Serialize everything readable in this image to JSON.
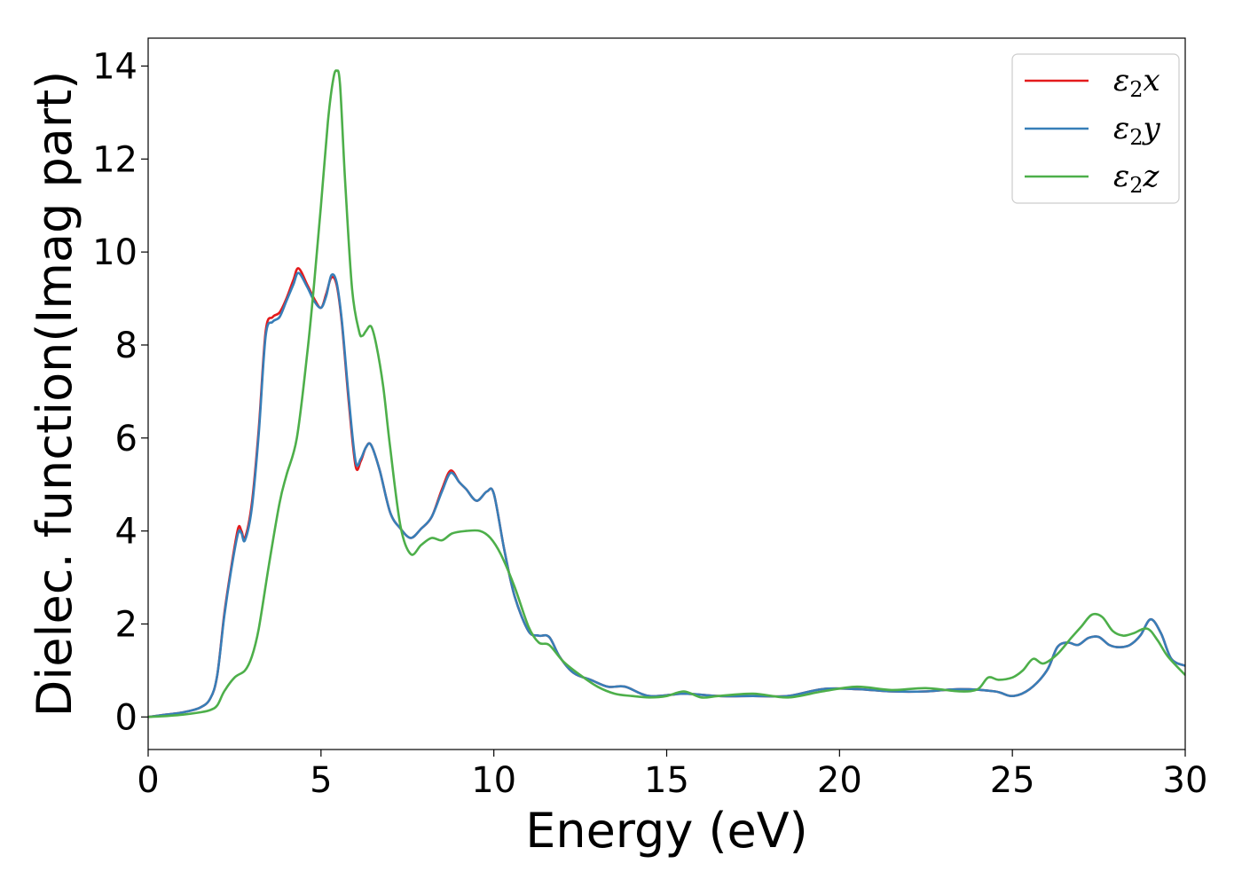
{
  "chart_data": {
    "type": "line",
    "title": "",
    "xlabel": "Energy (eV)",
    "ylabel": "Dielec. function(Imag part)",
    "xlim": [
      0,
      30
    ],
    "ylim": [
      -0.7,
      14.6
    ],
    "xticks": [
      0,
      5,
      10,
      15,
      20,
      25,
      30
    ],
    "yticks": [
      0,
      2,
      4,
      6,
      8,
      10,
      12,
      14
    ],
    "grid": false,
    "legend_position": "top-right",
    "series": [
      {
        "name": "ε2x",
        "legend_base": "ε",
        "legend_sub": "2",
        "legend_var": "x",
        "color": "#e41a1c",
        "x": [
          0,
          0.5,
          1.0,
          1.5,
          1.8,
          2.0,
          2.2,
          2.4,
          2.6,
          2.7,
          2.8,
          3.0,
          3.2,
          3.4,
          3.6,
          3.8,
          4.0,
          4.2,
          4.35,
          4.6,
          4.8,
          5.0,
          5.15,
          5.3,
          5.45,
          5.6,
          5.8,
          6.0,
          6.15,
          6.3,
          6.45,
          6.7,
          7.0,
          7.3,
          7.6,
          7.9,
          8.2,
          8.5,
          8.75,
          9.0,
          9.2,
          9.5,
          9.8,
          10.0,
          10.3,
          10.6,
          11.0,
          11.3,
          11.6,
          11.9,
          12.3,
          12.8,
          13.3,
          13.8,
          14.5,
          15.5,
          16.5,
          17.5,
          18.5,
          19.5,
          20.5,
          21.5,
          22.5,
          23.5,
          24.5,
          25.0,
          25.5,
          26.0,
          26.3,
          26.6,
          26.9,
          27.2,
          27.5,
          27.8,
          28.1,
          28.4,
          28.7,
          29.0,
          29.3,
          29.6,
          30.0
        ],
        "y": [
          0,
          0.05,
          0.1,
          0.2,
          0.4,
          0.9,
          2.2,
          3.2,
          4.05,
          4.0,
          3.85,
          4.6,
          6.2,
          8.3,
          8.6,
          8.7,
          9.0,
          9.4,
          9.65,
          9.3,
          9.0,
          8.8,
          9.1,
          9.45,
          9.3,
          8.5,
          6.8,
          5.4,
          5.5,
          5.8,
          5.85,
          5.3,
          4.4,
          4.05,
          3.85,
          4.05,
          4.3,
          4.9,
          5.3,
          5.05,
          4.9,
          4.65,
          4.85,
          4.8,
          3.6,
          2.6,
          1.85,
          1.75,
          1.72,
          1.3,
          0.95,
          0.8,
          0.65,
          0.65,
          0.45,
          0.5,
          0.45,
          0.45,
          0.45,
          0.6,
          0.6,
          0.55,
          0.55,
          0.6,
          0.55,
          0.45,
          0.6,
          1.0,
          1.5,
          1.6,
          1.55,
          1.7,
          1.72,
          1.55,
          1.5,
          1.55,
          1.75,
          2.1,
          1.8,
          1.25,
          1.1
        ]
      },
      {
        "name": "ε2y",
        "legend_base": "ε",
        "legend_sub": "2",
        "legend_var": "y",
        "color": "#377eb8",
        "x": [
          0,
          0.5,
          1.0,
          1.5,
          1.8,
          2.0,
          2.2,
          2.4,
          2.6,
          2.7,
          2.8,
          3.0,
          3.2,
          3.4,
          3.6,
          3.8,
          4.0,
          4.2,
          4.35,
          4.6,
          4.8,
          5.0,
          5.15,
          5.3,
          5.45,
          5.6,
          5.8,
          6.0,
          6.15,
          6.3,
          6.45,
          6.7,
          7.0,
          7.3,
          7.6,
          7.9,
          8.2,
          8.5,
          8.75,
          9.0,
          9.2,
          9.5,
          9.8,
          10.0,
          10.3,
          10.6,
          11.0,
          11.3,
          11.6,
          11.9,
          12.3,
          12.8,
          13.3,
          13.8,
          14.5,
          15.5,
          16.5,
          17.5,
          18.5,
          19.5,
          20.5,
          21.5,
          22.5,
          23.5,
          24.5,
          25.0,
          25.5,
          26.0,
          26.3,
          26.6,
          26.9,
          27.2,
          27.5,
          27.8,
          28.1,
          28.4,
          28.7,
          29.0,
          29.3,
          29.6,
          30.0
        ],
        "y": [
          0,
          0.05,
          0.1,
          0.2,
          0.4,
          0.9,
          2.15,
          3.15,
          3.95,
          3.95,
          3.8,
          4.5,
          6.1,
          8.2,
          8.5,
          8.6,
          8.95,
          9.3,
          9.55,
          9.25,
          8.95,
          8.8,
          9.05,
          9.5,
          9.35,
          8.55,
          6.9,
          5.5,
          5.55,
          5.8,
          5.85,
          5.3,
          4.4,
          4.05,
          3.85,
          4.05,
          4.3,
          4.85,
          5.25,
          5.05,
          4.9,
          4.65,
          4.85,
          4.8,
          3.6,
          2.6,
          1.85,
          1.75,
          1.72,
          1.3,
          0.95,
          0.8,
          0.65,
          0.65,
          0.45,
          0.5,
          0.45,
          0.45,
          0.45,
          0.6,
          0.6,
          0.55,
          0.55,
          0.6,
          0.55,
          0.45,
          0.6,
          1.0,
          1.5,
          1.6,
          1.55,
          1.7,
          1.72,
          1.55,
          1.5,
          1.55,
          1.75,
          2.1,
          1.8,
          1.25,
          1.1
        ]
      },
      {
        "name": "ε2z",
        "legend_base": "ε",
        "legend_sub": "2",
        "legend_var": "z",
        "color": "#4daf4a",
        "x": [
          0,
          0.5,
          1.0,
          1.5,
          1.8,
          2.0,
          2.2,
          2.5,
          2.8,
          3.0,
          3.2,
          3.5,
          3.8,
          4.0,
          4.3,
          4.6,
          4.8,
          5.0,
          5.2,
          5.35,
          5.45,
          5.55,
          5.7,
          5.9,
          6.1,
          6.2,
          6.3,
          6.45,
          6.6,
          6.8,
          7.0,
          7.3,
          7.6,
          7.9,
          8.2,
          8.5,
          8.8,
          9.2,
          9.6,
          9.9,
          10.2,
          10.6,
          11.0,
          11.3,
          11.6,
          12.0,
          12.5,
          13.0,
          13.5,
          14.0,
          14.5,
          15.0,
          15.5,
          16.0,
          16.5,
          17.5,
          18.5,
          19.5,
          20.5,
          21.5,
          22.5,
          23.5,
          24.0,
          24.3,
          24.6,
          25.0,
          25.3,
          25.6,
          25.9,
          26.3,
          26.7,
          27.0,
          27.3,
          27.6,
          27.9,
          28.2,
          28.5,
          28.9,
          29.2,
          29.5,
          30.0
        ],
        "y": [
          0,
          0.02,
          0.05,
          0.1,
          0.15,
          0.25,
          0.55,
          0.85,
          1.0,
          1.3,
          1.9,
          3.3,
          4.6,
          5.2,
          6.0,
          7.8,
          9.3,
          11.0,
          12.8,
          13.7,
          13.9,
          13.6,
          11.5,
          9.2,
          8.3,
          8.2,
          8.3,
          8.4,
          8.0,
          7.1,
          5.8,
          4.1,
          3.5,
          3.7,
          3.85,
          3.8,
          3.95,
          4.0,
          4.0,
          3.85,
          3.5,
          2.8,
          1.95,
          1.6,
          1.55,
          1.2,
          0.9,
          0.65,
          0.5,
          0.45,
          0.42,
          0.45,
          0.55,
          0.42,
          0.45,
          0.5,
          0.42,
          0.55,
          0.65,
          0.58,
          0.62,
          0.55,
          0.6,
          0.85,
          0.8,
          0.85,
          1.0,
          1.25,
          1.15,
          1.35,
          1.7,
          1.95,
          2.2,
          2.15,
          1.85,
          1.75,
          1.8,
          1.9,
          1.65,
          1.3,
          0.9
        ]
      }
    ]
  }
}
